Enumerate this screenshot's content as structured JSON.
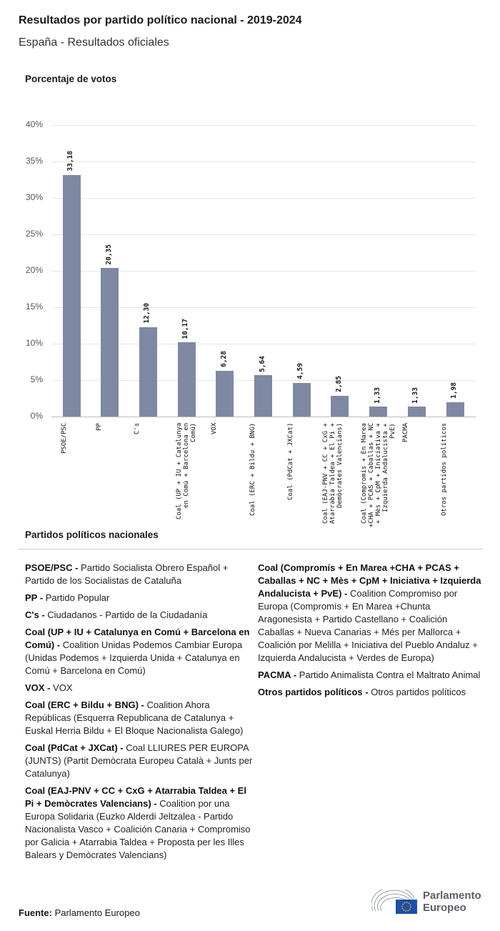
{
  "header": {
    "title": "Resultados por partido político nacional - 2019-2024",
    "subtitle": "España - Resultados oficiales"
  },
  "chart_data": {
    "type": "bar",
    "ylabel": "Porcentaje de votos",
    "ylim": [
      0,
      40
    ],
    "yticks": [
      "0%",
      "5%",
      "10%",
      "15%",
      "20%",
      "25%",
      "30%",
      "35%",
      "40%"
    ],
    "grid": true,
    "bar_color": "#7f88a3",
    "categories": [
      "PSOE/PSC",
      "PP",
      "C's",
      "Coal (UP + IU + Catalunya en Comú + Barcelona en Comú)",
      "VOX",
      "Coal (ERC + Bildu + BNG)",
      "Coal (PdCat + JXCat)",
      "Coal (EAJ-PNV + CC + CxG + Atarrabia Taldea + El Pi + Demòcrates Valencians)",
      "Coal (Compromís + En Marea +CHA + PCAS + Caballas + NC + Mès + CpM + Iniciativa + Izquierda Andalucista + PvE)",
      "PACMA",
      "Otros partidos políticos"
    ],
    "values": [
      33.18,
      20.35,
      12.3,
      10.17,
      6.28,
      5.64,
      4.59,
      2.85,
      1.33,
      1.33,
      1.98
    ],
    "value_labels": [
      "33,18",
      "20,35",
      "12,30",
      "10,17",
      "6,28",
      "5,64",
      "4,59",
      "2,85",
      "1,33",
      "1,33",
      "1,98"
    ]
  },
  "legend": {
    "title": "Partidos políticos nacionales",
    "left": [
      {
        "abbr": "PSOE/PSC -",
        "desc": "Partido Socialista Obrero Español + Partido de los Socialistas de Cataluña"
      },
      {
        "abbr": "PP -",
        "desc": "Partido Popular"
      },
      {
        "abbr": "C's -",
        "desc": "Ciudadanos - Partido de la Ciudadanía"
      },
      {
        "abbr": "Coal (UP + IU + Catalunya en Comú + Barcelona en Comú) -",
        "desc": "Coalition Unidas Podemos Cambiar Europa (Unidas Podemos + Izquierda Unida + Catalunya en Comú + Barcelona en Comú)"
      },
      {
        "abbr": "VOX -",
        "desc": "VOX"
      },
      {
        "abbr": "Coal (ERC + Bildu + BNG) -",
        "desc": "Coalition Ahora Repúblicas (Esquerra Republicana de Catalunya + Euskal Herria Bildu + El Bloque Nacionalista Galego)"
      },
      {
        "abbr": "Coal (PdCat + JXCat) -",
        "desc": "Coal LLIURES PER EUROPA (JUNTS) (Partit Demòcrata Europeu Català + Junts per Catalunya)"
      },
      {
        "abbr": "Coal (EAJ-PNV + CC + CxG + Atarrabia Taldea + El Pi + Demòcrates Valencians) -",
        "desc": "Coalition por una Europa Solidaria (Euzko Alderdi Jeltzalea - Partido Nacionalista Vasco + Coalición Canaria + Compromiso por Galicia + Atarrabia Taldea + Proposta per les Illes Balears y Demòcrates Valencians)"
      }
    ],
    "right": [
      {
        "abbr": "Coal (Compromís + En Marea +CHA + PCAS + Caballas + NC + Mès + CpM + Iniciativa + Izquierda Andalucista + PvE) -",
        "desc": "Coalition Compromiso por Europa (Compromís + En Marea +Chunta Aragonesista + Partido Castellano + Coalición Caballas + Nueva Canarias + Més per Mallorca + Coalición por Melilla + Iniciativa del Pueblo Andaluz + Izquierda Andalucista + Verdes de Europa)"
      },
      {
        "abbr": "PACMA -",
        "desc": "Partido Animalista Contra el Maltrato Animal"
      },
      {
        "abbr": "Otros partidos políticos -",
        "desc": "Otros partidos políticos"
      }
    ]
  },
  "footer": {
    "source_label": "Fuente:",
    "source": "Parlamento Europeo",
    "logo_text": "Parlamento Europeo"
  }
}
